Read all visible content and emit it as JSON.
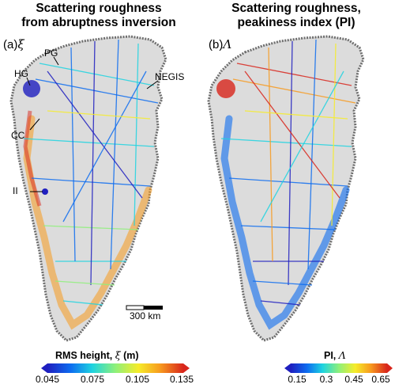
{
  "panel_a": {
    "title_line1": "Scattering roughness",
    "title_line2": "from abruptness inversion",
    "label_prefix": "(a)",
    "label_symbol": "ξ",
    "places": {
      "hg": "HG",
      "pg": "PG",
      "negis": "NEGIS",
      "cc": "CC",
      "ii": "II"
    },
    "scale_bar": "300 km",
    "colorbar": {
      "title_prefix": "RMS height, ",
      "title_symbol": "ξ",
      "title_suffix": " (m)",
      "ticks": [
        "0.045",
        "0.075",
        "0.105",
        "0.135"
      ]
    }
  },
  "panel_b": {
    "title_line1": "Scattering roughness,",
    "title_line2": "peakiness index (PI)",
    "label_prefix": "(b)",
    "label_symbol": "Λ",
    "colorbar": {
      "title_prefix": "PI, ",
      "title_symbol": "Λ",
      "ticks": [
        "0.15",
        "0.3",
        "0.45",
        "0.65"
      ]
    }
  },
  "colors": {
    "ice_sheet": "#dcdcdc",
    "coast": "#6e6e6e",
    "colormap": [
      "#1f1fbf",
      "#0d6cf0",
      "#1ed3e0",
      "#8ef07a",
      "#f6ec2a",
      "#f79a1e",
      "#d8261c"
    ]
  }
}
